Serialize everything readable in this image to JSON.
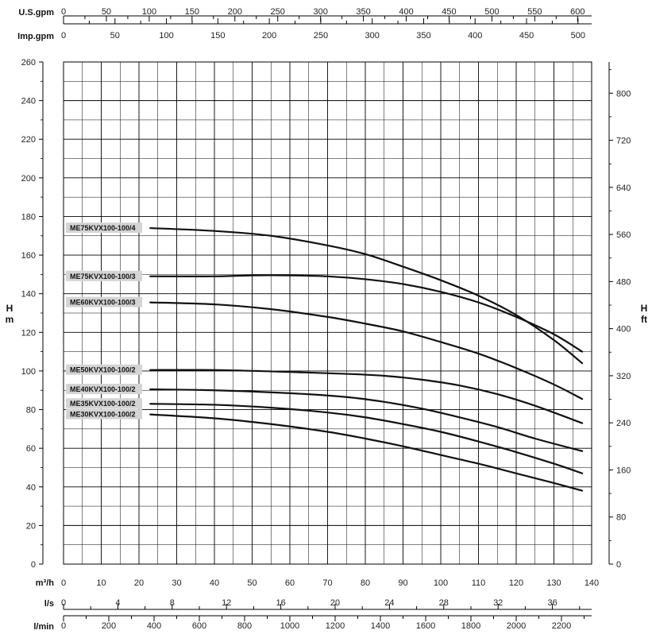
{
  "chart_data": {
    "type": "line",
    "title": "",
    "xlabel": "m³/h",
    "ylabel": "H m",
    "y_secondary_label": "H ft",
    "xlim": [
      0,
      140
    ],
    "ylim": [
      0,
      260
    ],
    "grid": true,
    "x_ticks": [
      0,
      10,
      20,
      30,
      40,
      50,
      60,
      70,
      80,
      90,
      100,
      110,
      120,
      130,
      140
    ],
    "y_ticks": [
      0,
      20,
      40,
      60,
      80,
      100,
      120,
      140,
      160,
      180,
      200,
      220,
      240,
      260
    ],
    "ft_ticks": [
      0,
      80,
      160,
      240,
      320,
      400,
      480,
      560,
      640,
      720,
      800
    ],
    "secondary_x_axes": [
      {
        "label": "U.S.gpm",
        "per_m3h": 4.4029,
        "ticks": [
          0,
          50,
          100,
          150,
          200,
          250,
          300,
          350,
          400,
          450,
          500,
          550,
          600
        ]
      },
      {
        "label": "Imp.gpm",
        "per_m3h": 3.6662,
        "ticks": [
          0,
          50,
          100,
          150,
          200,
          250,
          300,
          350,
          400,
          450,
          500
        ]
      },
      {
        "label": "l/s",
        "per_m3h": 0.27778,
        "ticks": [
          0,
          4,
          8,
          12,
          16,
          20,
          24,
          28,
          32,
          36
        ]
      },
      {
        "label": "l/min",
        "per_m3h": 16.6667,
        "ticks": [
          0,
          200,
          400,
          600,
          800,
          1000,
          1200,
          1400,
          1600,
          1800,
          2000,
          2200
        ]
      }
    ],
    "series": [
      {
        "name": "ME75KVX100-100/4",
        "x": [
          23,
          40,
          55,
          70,
          80,
          90,
          100,
          110,
          120,
          130,
          137.5
        ],
        "y": [
          174,
          172.5,
          170,
          165,
          160.5,
          154,
          147,
          139,
          129,
          116,
          104
        ]
      },
      {
        "name": "ME75KVX100-100/3",
        "x": [
          23,
          40,
          50,
          60,
          70,
          80,
          90,
          100,
          110,
          120,
          130,
          137.5
        ],
        "y": [
          149,
          149,
          149.5,
          149.5,
          149,
          147.5,
          145,
          141,
          135.5,
          128,
          119,
          110
        ]
      },
      {
        "name": "ME60KVX100-100/3",
        "x": [
          23,
          40,
          55,
          70,
          80,
          90,
          100,
          110,
          120,
          130,
          137.5
        ],
        "y": [
          135.5,
          134.5,
          132,
          128,
          124.5,
          120.5,
          115,
          109,
          101.5,
          93,
          85.5
        ]
      },
      {
        "name": "ME50KVX100-100/2",
        "x": [
          23,
          40,
          60,
          75,
          85,
          95,
          105,
          115,
          125,
          137.5
        ],
        "y": [
          100.5,
          100.5,
          99.5,
          98.5,
          97.5,
          95.5,
          92.5,
          88,
          82,
          73
        ]
      },
      {
        "name": "ME40KVX100-100/2",
        "x": [
          23,
          40,
          60,
          75,
          85,
          95,
          105,
          115,
          125,
          137.5
        ],
        "y": [
          90.5,
          90,
          88.5,
          86.5,
          84,
          80.5,
          76,
          71,
          65,
          58.5
        ]
      },
      {
        "name": "ME35KVX100-100/2",
        "x": [
          23,
          40,
          55,
          70,
          80,
          90,
          100,
          110,
          120,
          130,
          137.5
        ],
        "y": [
          83,
          82.5,
          81,
          78.5,
          76,
          72.5,
          68.5,
          63.5,
          58,
          52,
          47
        ]
      },
      {
        "name": "ME30KVX100-100/2",
        "x": [
          23,
          40,
          55,
          70,
          80,
          90,
          100,
          110,
          120,
          130,
          137.5
        ],
        "y": [
          77.5,
          75.5,
          72.5,
          68.5,
          65,
          61,
          56.5,
          52,
          47,
          42,
          38
        ]
      }
    ]
  }
}
